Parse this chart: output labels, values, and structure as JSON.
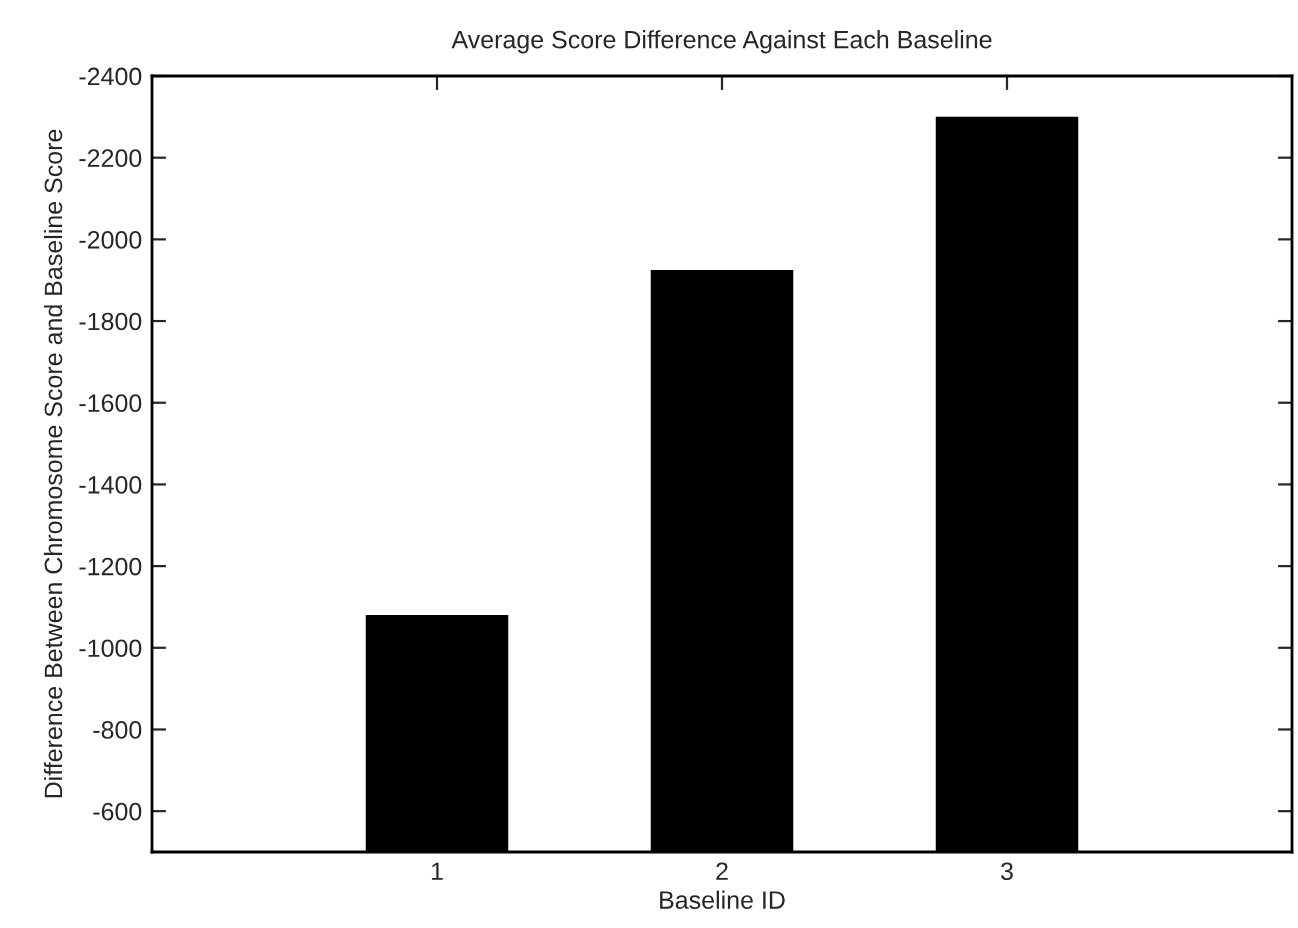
{
  "chart_data": {
    "type": "bar",
    "title": "Average Score Difference Against Each Baseline",
    "xlabel": "Baseline ID",
    "ylabel": "Difference Between Chromosome Score and Baseline Score",
    "categories": [
      "1",
      "2",
      "3"
    ],
    "values": [
      -1080,
      -1925,
      -2300
    ],
    "color": "#000000",
    "ylim": [
      -500,
      -2400
    ],
    "yticks": [
      -600,
      -800,
      -1000,
      -1200,
      -1400,
      -1600,
      -1800,
      -2000,
      -2200,
      -2400
    ],
    "grid": false,
    "legend": false
  }
}
